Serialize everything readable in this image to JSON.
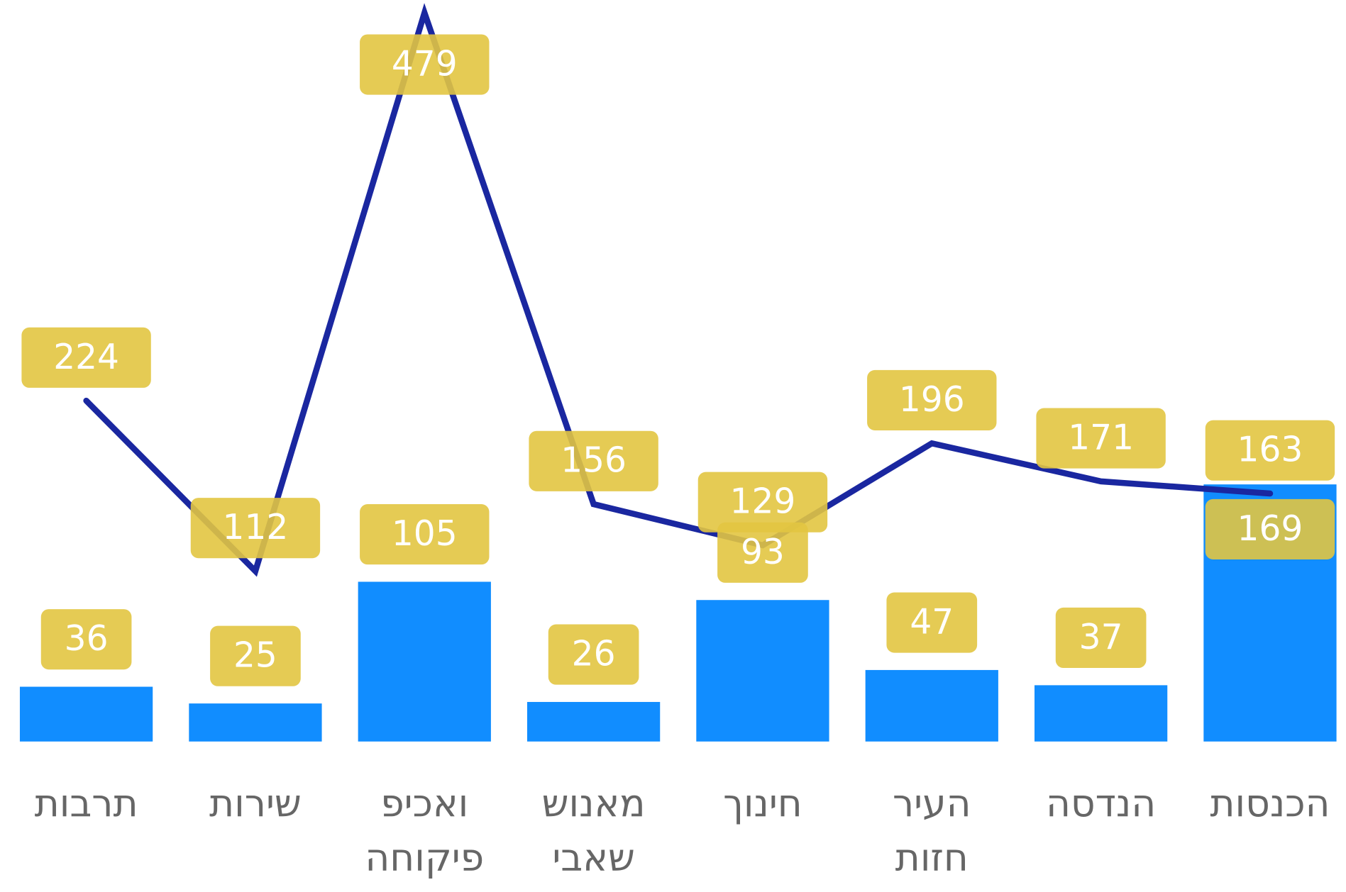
{
  "chart_data": {
    "type": "combo",
    "categories": [
      [
        "תרבות"
      ],
      [
        "שירות"
      ],
      [
        "ואכיפ",
        "פיקוחה"
      ],
      [
        "מאנוש",
        "שאבי"
      ],
      [
        "חינוך"
      ],
      [
        "העיר",
        "חזות"
      ],
      [
        "הנדסה"
      ],
      [
        "הכנסות"
      ]
    ],
    "series": [
      {
        "type": "bar",
        "color": "#118dff",
        "values": [
          36,
          25,
          105,
          26,
          93,
          47,
          37,
          169
        ]
      },
      {
        "type": "line",
        "color": "#1a27a0",
        "values": [
          224,
          112,
          479,
          156,
          129,
          196,
          171,
          163
        ]
      }
    ],
    "label_color": "#e2c541",
    "ylim": [
      0,
      486
    ]
  }
}
